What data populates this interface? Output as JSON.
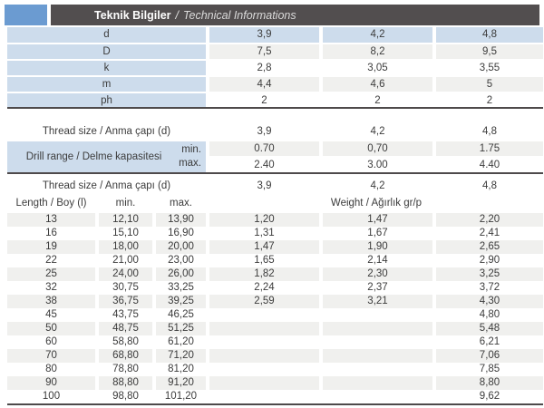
{
  "header": {
    "title_tr": "Teknik Bilgiler",
    "separator": "/",
    "title_en": "Technical Informations"
  },
  "colors": {
    "accent_blue": "#6b9bd1",
    "titlebar_gray": "#524e4f",
    "cell_blue": "#cddcec",
    "row_gray": "#f0f0ee",
    "rule_dark": "#4e4a4b"
  },
  "dimensions_table": {
    "header": {
      "label": "d",
      "values": [
        "3,9",
        "4,2",
        "4,8"
      ]
    },
    "rows": [
      {
        "label": "D",
        "v1": "7,5",
        "v2": "8,2",
        "v3": "9,5"
      },
      {
        "label": "k",
        "v1": "2,8",
        "v2": "3,05",
        "v3": "3,55"
      },
      {
        "label": "m",
        "v1": "4,4",
        "v2": "4,6",
        "v3": "5"
      },
      {
        "label": "ph",
        "v1": "2",
        "v2": "2",
        "v3": "2"
      }
    ]
  },
  "drill_table": {
    "header": {
      "label": "Thread size / Anma çapı (d)",
      "values": [
        "3,9",
        "4,2",
        "4,8"
      ]
    },
    "range_label": "Drill range / Delme kapasitesi",
    "min_label": "min.",
    "max_label": "max.",
    "min_values": [
      "0.70",
      "0,70",
      "1.75"
    ],
    "max_values": [
      "2.40",
      "3.00",
      "4.40"
    ]
  },
  "length_table": {
    "header": {
      "label": "Thread size / Anma çapı (d)",
      "values": [
        "3,9",
        "4,2",
        "4,8"
      ]
    },
    "columns": {
      "length": "Length / Boy (l)",
      "min": "min.",
      "max": "max.",
      "weight": "Weight / Ağırlık gr/p"
    },
    "rows": [
      {
        "length": "13",
        "min": "12,10",
        "max": "13,90",
        "w1": "1,20",
        "w2": "1,47",
        "w3": "2,20"
      },
      {
        "length": "16",
        "min": "15,10",
        "max": "16,90",
        "w1": "1,31",
        "w2": "1,67",
        "w3": "2,41"
      },
      {
        "length": "19",
        "min": "18,00",
        "max": "20,00",
        "w1": "1,47",
        "w2": "1,90",
        "w3": "2,65"
      },
      {
        "length": "22",
        "min": "21,00",
        "max": "23,00",
        "w1": "1,65",
        "w2": "2,14",
        "w3": "2,90"
      },
      {
        "length": "25",
        "min": "24,00",
        "max": "26,00",
        "w1": "1,82",
        "w2": "2,30",
        "w3": "3,25"
      },
      {
        "length": "32",
        "min": "30,75",
        "max": "33,25",
        "w1": "2,24",
        "w2": "2,37",
        "w3": "3,72"
      },
      {
        "length": "38",
        "min": "36,75",
        "max": "39,25",
        "w1": "2,59",
        "w2": "3,21",
        "w3": "4,30"
      },
      {
        "length": "45",
        "min": "43,75",
        "max": "46,25",
        "w1": "",
        "w2": "",
        "w3": "4,80"
      },
      {
        "length": "50",
        "min": "48,75",
        "max": "51,25",
        "w1": "",
        "w2": "",
        "w3": "5,48"
      },
      {
        "length": "60",
        "min": "58,80",
        "max": "61,20",
        "w1": "",
        "w2": "",
        "w3": "6,21"
      },
      {
        "length": "70",
        "min": "68,80",
        "max": "71,20",
        "w1": "",
        "w2": "",
        "w3": "7,06"
      },
      {
        "length": "80",
        "min": "78,80",
        "max": "81,20",
        "w1": "",
        "w2": "",
        "w3": "7,85"
      },
      {
        "length": "90",
        "min": "88,80",
        "max": "91,20",
        "w1": "",
        "w2": "",
        "w3": "8,80"
      },
      {
        "length": "100",
        "min": "98,80",
        "max": "101,20",
        "w1": "",
        "w2": "",
        "w3": "9,62"
      }
    ]
  }
}
